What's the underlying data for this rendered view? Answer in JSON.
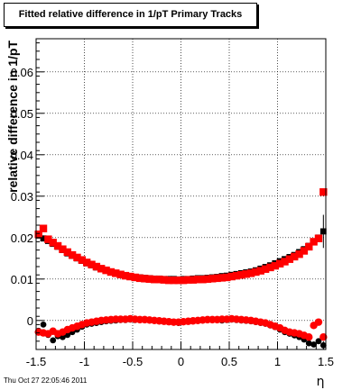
{
  "chart_data": {
    "type": "scatter",
    "title": "Fitted relative difference in 1/pT  Primary Tracks",
    "xlabel": "η",
    "ylabel": "relative difference in 1/pT",
    "xlim": [
      -1.5,
      1.5
    ],
    "ylim": [
      -0.007,
      0.068
    ],
    "xticks": [
      -1.5,
      -1,
      -0.5,
      0,
      0.5,
      1,
      1.5
    ],
    "xtick_labels": [
      "-1.5",
      "-1",
      "-0.5",
      "0",
      "0.5",
      "1",
      "1.5"
    ],
    "yticks": [
      0,
      0.01,
      0.02,
      0.03,
      0.04,
      0.05,
      0.06
    ],
    "ytick_labels": [
      "0",
      "0.01",
      "0.02",
      "0.03",
      "0.04",
      "0.05",
      "0.06"
    ],
    "grid": true,
    "series": [
      {
        "color": "#000000",
        "x": [
          -1.475,
          -1.425,
          -1.375,
          -1.325,
          -1.275,
          -1.225,
          -1.175,
          -1.125,
          -1.075,
          -1.025,
          -0.975,
          -0.925,
          -0.875,
          -0.825,
          -0.775,
          -0.725,
          -0.675,
          -0.625,
          -0.575,
          -0.525,
          -0.475,
          -0.425,
          -0.375,
          -0.325,
          -0.275,
          -0.225,
          -0.175,
          -0.125,
          -0.075,
          -0.025,
          0.025,
          0.075,
          0.125,
          0.175,
          0.225,
          0.275,
          0.325,
          0.375,
          0.425,
          0.475,
          0.525,
          0.575,
          0.625,
          0.675,
          0.725,
          0.775,
          0.825,
          0.875,
          0.925,
          0.975,
          1.025,
          1.075,
          1.125,
          1.175,
          1.225,
          1.275,
          1.325,
          1.375,
          1.425,
          1.475
        ],
        "y": [
          0.0205,
          0.0198,
          0.0192,
          0.0185,
          0.0178,
          0.017,
          0.0162,
          0.0156,
          0.015,
          0.0144,
          0.0138,
          0.0133,
          0.0128,
          0.0124,
          0.012,
          0.0117,
          0.0114,
          0.0111,
          0.0109,
          0.0107,
          0.0105,
          0.0104,
          0.0103,
          0.0102,
          0.0101,
          0.0101,
          0.01,
          0.01,
          0.01,
          0.0099,
          0.01,
          0.01,
          0.0101,
          0.0102,
          0.0102,
          0.0103,
          0.0104,
          0.0105,
          0.0107,
          0.0108,
          0.011,
          0.0112,
          0.0114,
          0.0116,
          0.0118,
          0.0121,
          0.0125,
          0.0129,
          0.0133,
          0.0138,
          0.0143,
          0.0148,
          0.0153,
          0.0158,
          0.0165,
          0.0172,
          0.018,
          0.019,
          0.02,
          0.0215
        ],
        "yerr": [
          0.0004,
          0.0004,
          0.0004,
          0.0004,
          0.0003,
          0.0003,
          0.0003,
          0.0003,
          0.0003,
          0.0003,
          0.0003,
          0.0003,
          0.0003,
          0.0003,
          0.0003,
          0.0003,
          0.0003,
          0.0003,
          0.0003,
          0.0003,
          0.0003,
          0.0003,
          0.0003,
          0.0003,
          0.0003,
          0.0003,
          0.0003,
          0.0003,
          0.0003,
          0.0003,
          0.0003,
          0.0003,
          0.0003,
          0.0003,
          0.0003,
          0.0003,
          0.0003,
          0.0003,
          0.0003,
          0.0003,
          0.0003,
          0.0003,
          0.0003,
          0.0003,
          0.0003,
          0.0003,
          0.0003,
          0.0003,
          0.0003,
          0.0003,
          0.0003,
          0.0003,
          0.0003,
          0.0003,
          0.0004,
          0.0004,
          0.0004,
          0.0005,
          0.0006,
          0.004
        ]
      },
      {
        "color": "#ff0000",
        "x": [
          -1.475,
          -1.425,
          -1.375,
          -1.325,
          -1.275,
          -1.225,
          -1.175,
          -1.125,
          -1.075,
          -1.025,
          -0.975,
          -0.925,
          -0.875,
          -0.825,
          -0.775,
          -0.725,
          -0.675,
          -0.625,
          -0.575,
          -0.525,
          -0.475,
          -0.425,
          -0.375,
          -0.325,
          -0.275,
          -0.225,
          -0.175,
          -0.125,
          -0.075,
          -0.025,
          0.025,
          0.075,
          0.125,
          0.175,
          0.225,
          0.275,
          0.325,
          0.375,
          0.425,
          0.475,
          0.525,
          0.575,
          0.625,
          0.675,
          0.725,
          0.775,
          0.825,
          0.875,
          0.925,
          0.975,
          1.025,
          1.075,
          1.125,
          1.175,
          1.225,
          1.275,
          1.325,
          1.375,
          1.425,
          1.475
        ],
        "y": [
          0.0208,
          0.0222,
          0.0196,
          0.0188,
          0.018,
          0.0172,
          0.0165,
          0.0158,
          0.0152,
          0.0146,
          0.014,
          0.0135,
          0.013,
          0.0125,
          0.0121,
          0.0117,
          0.0114,
          0.0111,
          0.0108,
          0.0106,
          0.0104,
          0.0102,
          0.0101,
          0.01,
          0.0099,
          0.0099,
          0.0098,
          0.0097,
          0.0097,
          0.0097,
          0.0097,
          0.0098,
          0.0098,
          0.0099,
          0.0099,
          0.01,
          0.0101,
          0.0102,
          0.0103,
          0.0104,
          0.0106,
          0.0108,
          0.011,
          0.0112,
          0.0114,
          0.0117,
          0.012,
          0.0124,
          0.0128,
          0.0132,
          0.0137,
          0.0142,
          0.0148,
          0.0154,
          0.016,
          0.0168,
          0.0178,
          0.019,
          0.0198,
          0.031
        ],
        "yerr": [
          0.0004,
          0.0004,
          0.0004,
          0.0004,
          0.0003,
          0.0003,
          0.0003,
          0.0003,
          0.0003,
          0.0003,
          0.0003,
          0.0003,
          0.0003,
          0.0003,
          0.0003,
          0.0003,
          0.0003,
          0.0003,
          0.0003,
          0.0003,
          0.0003,
          0.0003,
          0.0003,
          0.0003,
          0.0003,
          0.0003,
          0.0003,
          0.0003,
          0.0003,
          0.0003,
          0.0003,
          0.0003,
          0.0003,
          0.0003,
          0.0003,
          0.0003,
          0.0003,
          0.0003,
          0.0003,
          0.0003,
          0.0003,
          0.0003,
          0.0003,
          0.0003,
          0.0003,
          0.0003,
          0.0003,
          0.0003,
          0.0003,
          0.0003,
          0.0003,
          0.0003,
          0.0003,
          0.0003,
          0.0004,
          0.0004,
          0.0004,
          0.0005,
          0.0006,
          0.0008
        ]
      },
      {
        "color": "#000000",
        "x": [
          -1.475,
          -1.425,
          -1.375,
          -1.325,
          -1.275,
          -1.225,
          -1.175,
          -1.125,
          -1.075,
          -1.025,
          -0.975,
          -0.925,
          -0.875,
          -0.825,
          -0.775,
          -0.725,
          -0.675,
          -0.625,
          -0.575,
          -0.525,
          -0.475,
          -0.425,
          -0.375,
          -0.325,
          -0.275,
          -0.225,
          -0.175,
          -0.125,
          -0.075,
          -0.025,
          0.025,
          0.075,
          0.125,
          0.175,
          0.225,
          0.275,
          0.325,
          0.375,
          0.425,
          0.475,
          0.525,
          0.575,
          0.625,
          0.675,
          0.725,
          0.775,
          0.825,
          0.875,
          0.925,
          0.975,
          1.025,
          1.075,
          1.125,
          1.175,
          1.225,
          1.275,
          1.325,
          1.375,
          1.425,
          1.475
        ],
        "y": [
          -0.0025,
          -0.001,
          -0.0035,
          -0.0048,
          -0.0038,
          -0.004,
          -0.0035,
          -0.0028,
          -0.0022,
          -0.0015,
          -0.001,
          -0.0008,
          -0.0006,
          -0.0004,
          -0.0002,
          -0.0001,
          0.0,
          0.0001,
          0.0001,
          0.0002,
          0.0001,
          0.0001,
          0.0001,
          0.0,
          -0.0001,
          -0.0002,
          -0.0003,
          -0.0004,
          -0.0005,
          -0.0006,
          -0.0004,
          -0.0003,
          -0.0002,
          -0.0001,
          0.0,
          0.0001,
          0.0001,
          0.0001,
          0.0,
          0.0001,
          0.0002,
          0.0001,
          0.0,
          -0.0001,
          -0.0002,
          -0.0004,
          -0.0006,
          -0.0008,
          -0.0012,
          -0.0016,
          -0.0022,
          -0.0028,
          -0.0032,
          -0.0036,
          -0.004,
          -0.0046,
          -0.0055,
          -0.0058,
          -0.005,
          -0.006
        ],
        "yerr": [
          0.0004,
          0.0004,
          0.0004,
          0.0004,
          0.0003,
          0.0003,
          0.0003,
          0.0003,
          0.0003,
          0.0003,
          0.0003,
          0.0003,
          0.0003,
          0.0003,
          0.0003,
          0.0003,
          0.0003,
          0.0003,
          0.0003,
          0.0003,
          0.0003,
          0.0003,
          0.0003,
          0.0003,
          0.0003,
          0.0003,
          0.0003,
          0.0003,
          0.0003,
          0.0003,
          0.0003,
          0.0003,
          0.0003,
          0.0003,
          0.0003,
          0.0003,
          0.0003,
          0.0003,
          0.0003,
          0.0003,
          0.0003,
          0.0003,
          0.0003,
          0.0003,
          0.0003,
          0.0003,
          0.0003,
          0.0003,
          0.0003,
          0.0003,
          0.0003,
          0.0003,
          0.0003,
          0.0003,
          0.0004,
          0.0004,
          0.0004,
          0.0005,
          0.0006,
          0.001
        ]
      },
      {
        "color": "#ff0000",
        "x": [
          -1.475,
          -1.425,
          -1.375,
          -1.325,
          -1.275,
          -1.225,
          -1.175,
          -1.125,
          -1.075,
          -1.025,
          -0.975,
          -0.925,
          -0.875,
          -0.825,
          -0.775,
          -0.725,
          -0.675,
          -0.625,
          -0.575,
          -0.525,
          -0.475,
          -0.425,
          -0.375,
          -0.325,
          -0.275,
          -0.225,
          -0.175,
          -0.125,
          -0.075,
          -0.025,
          0.025,
          0.075,
          0.125,
          0.175,
          0.225,
          0.275,
          0.325,
          0.375,
          0.425,
          0.475,
          0.525,
          0.575,
          0.625,
          0.675,
          0.725,
          0.775,
          0.825,
          0.875,
          0.925,
          0.975,
          1.025,
          1.075,
          1.125,
          1.175,
          1.225,
          1.275,
          1.325,
          1.375,
          1.425,
          1.475
        ],
        "y": [
          -0.0028,
          -0.003,
          -0.0032,
          -0.0026,
          -0.0032,
          -0.0028,
          -0.0022,
          -0.0018,
          -0.0014,
          -0.001,
          -0.0006,
          -0.0004,
          -0.0002,
          0.0,
          0.0001,
          0.0002,
          0.0003,
          0.0003,
          0.0003,
          0.0004,
          0.0003,
          0.0002,
          0.0002,
          0.0001,
          0.0,
          -0.0001,
          -0.0002,
          -0.0003,
          -0.0004,
          -0.0004,
          -0.0003,
          -0.0002,
          -0.0001,
          0.0,
          0.0001,
          0.0002,
          0.0002,
          0.0002,
          0.0003,
          0.0003,
          0.0004,
          0.0003,
          0.0002,
          0.0001,
          0.0,
          -0.0002,
          -0.0004,
          -0.0006,
          -0.001,
          -0.0014,
          -0.0018,
          -0.0024,
          -0.0028,
          -0.003,
          -0.0032,
          -0.0036,
          -0.004,
          -0.0012,
          -0.0004,
          -0.004
        ],
        "yerr": [
          0.0004,
          0.0004,
          0.0004,
          0.0004,
          0.0003,
          0.0003,
          0.0003,
          0.0003,
          0.0003,
          0.0003,
          0.0003,
          0.0003,
          0.0003,
          0.0003,
          0.0003,
          0.0003,
          0.0003,
          0.0003,
          0.0003,
          0.0003,
          0.0003,
          0.0003,
          0.0003,
          0.0003,
          0.0003,
          0.0003,
          0.0003,
          0.0003,
          0.0003,
          0.0003,
          0.0003,
          0.0003,
          0.0003,
          0.0003,
          0.0003,
          0.0003,
          0.0003,
          0.0003,
          0.0003,
          0.0003,
          0.0003,
          0.0003,
          0.0003,
          0.0003,
          0.0003,
          0.0003,
          0.0003,
          0.0003,
          0.0003,
          0.0003,
          0.0003,
          0.0003,
          0.0003,
          0.0003,
          0.0004,
          0.0004,
          0.0004,
          0.0005,
          0.0006,
          0.0008
        ]
      }
    ]
  },
  "footer": {
    "timestamp": "Thu Oct 27 22:05:46 2011"
  }
}
